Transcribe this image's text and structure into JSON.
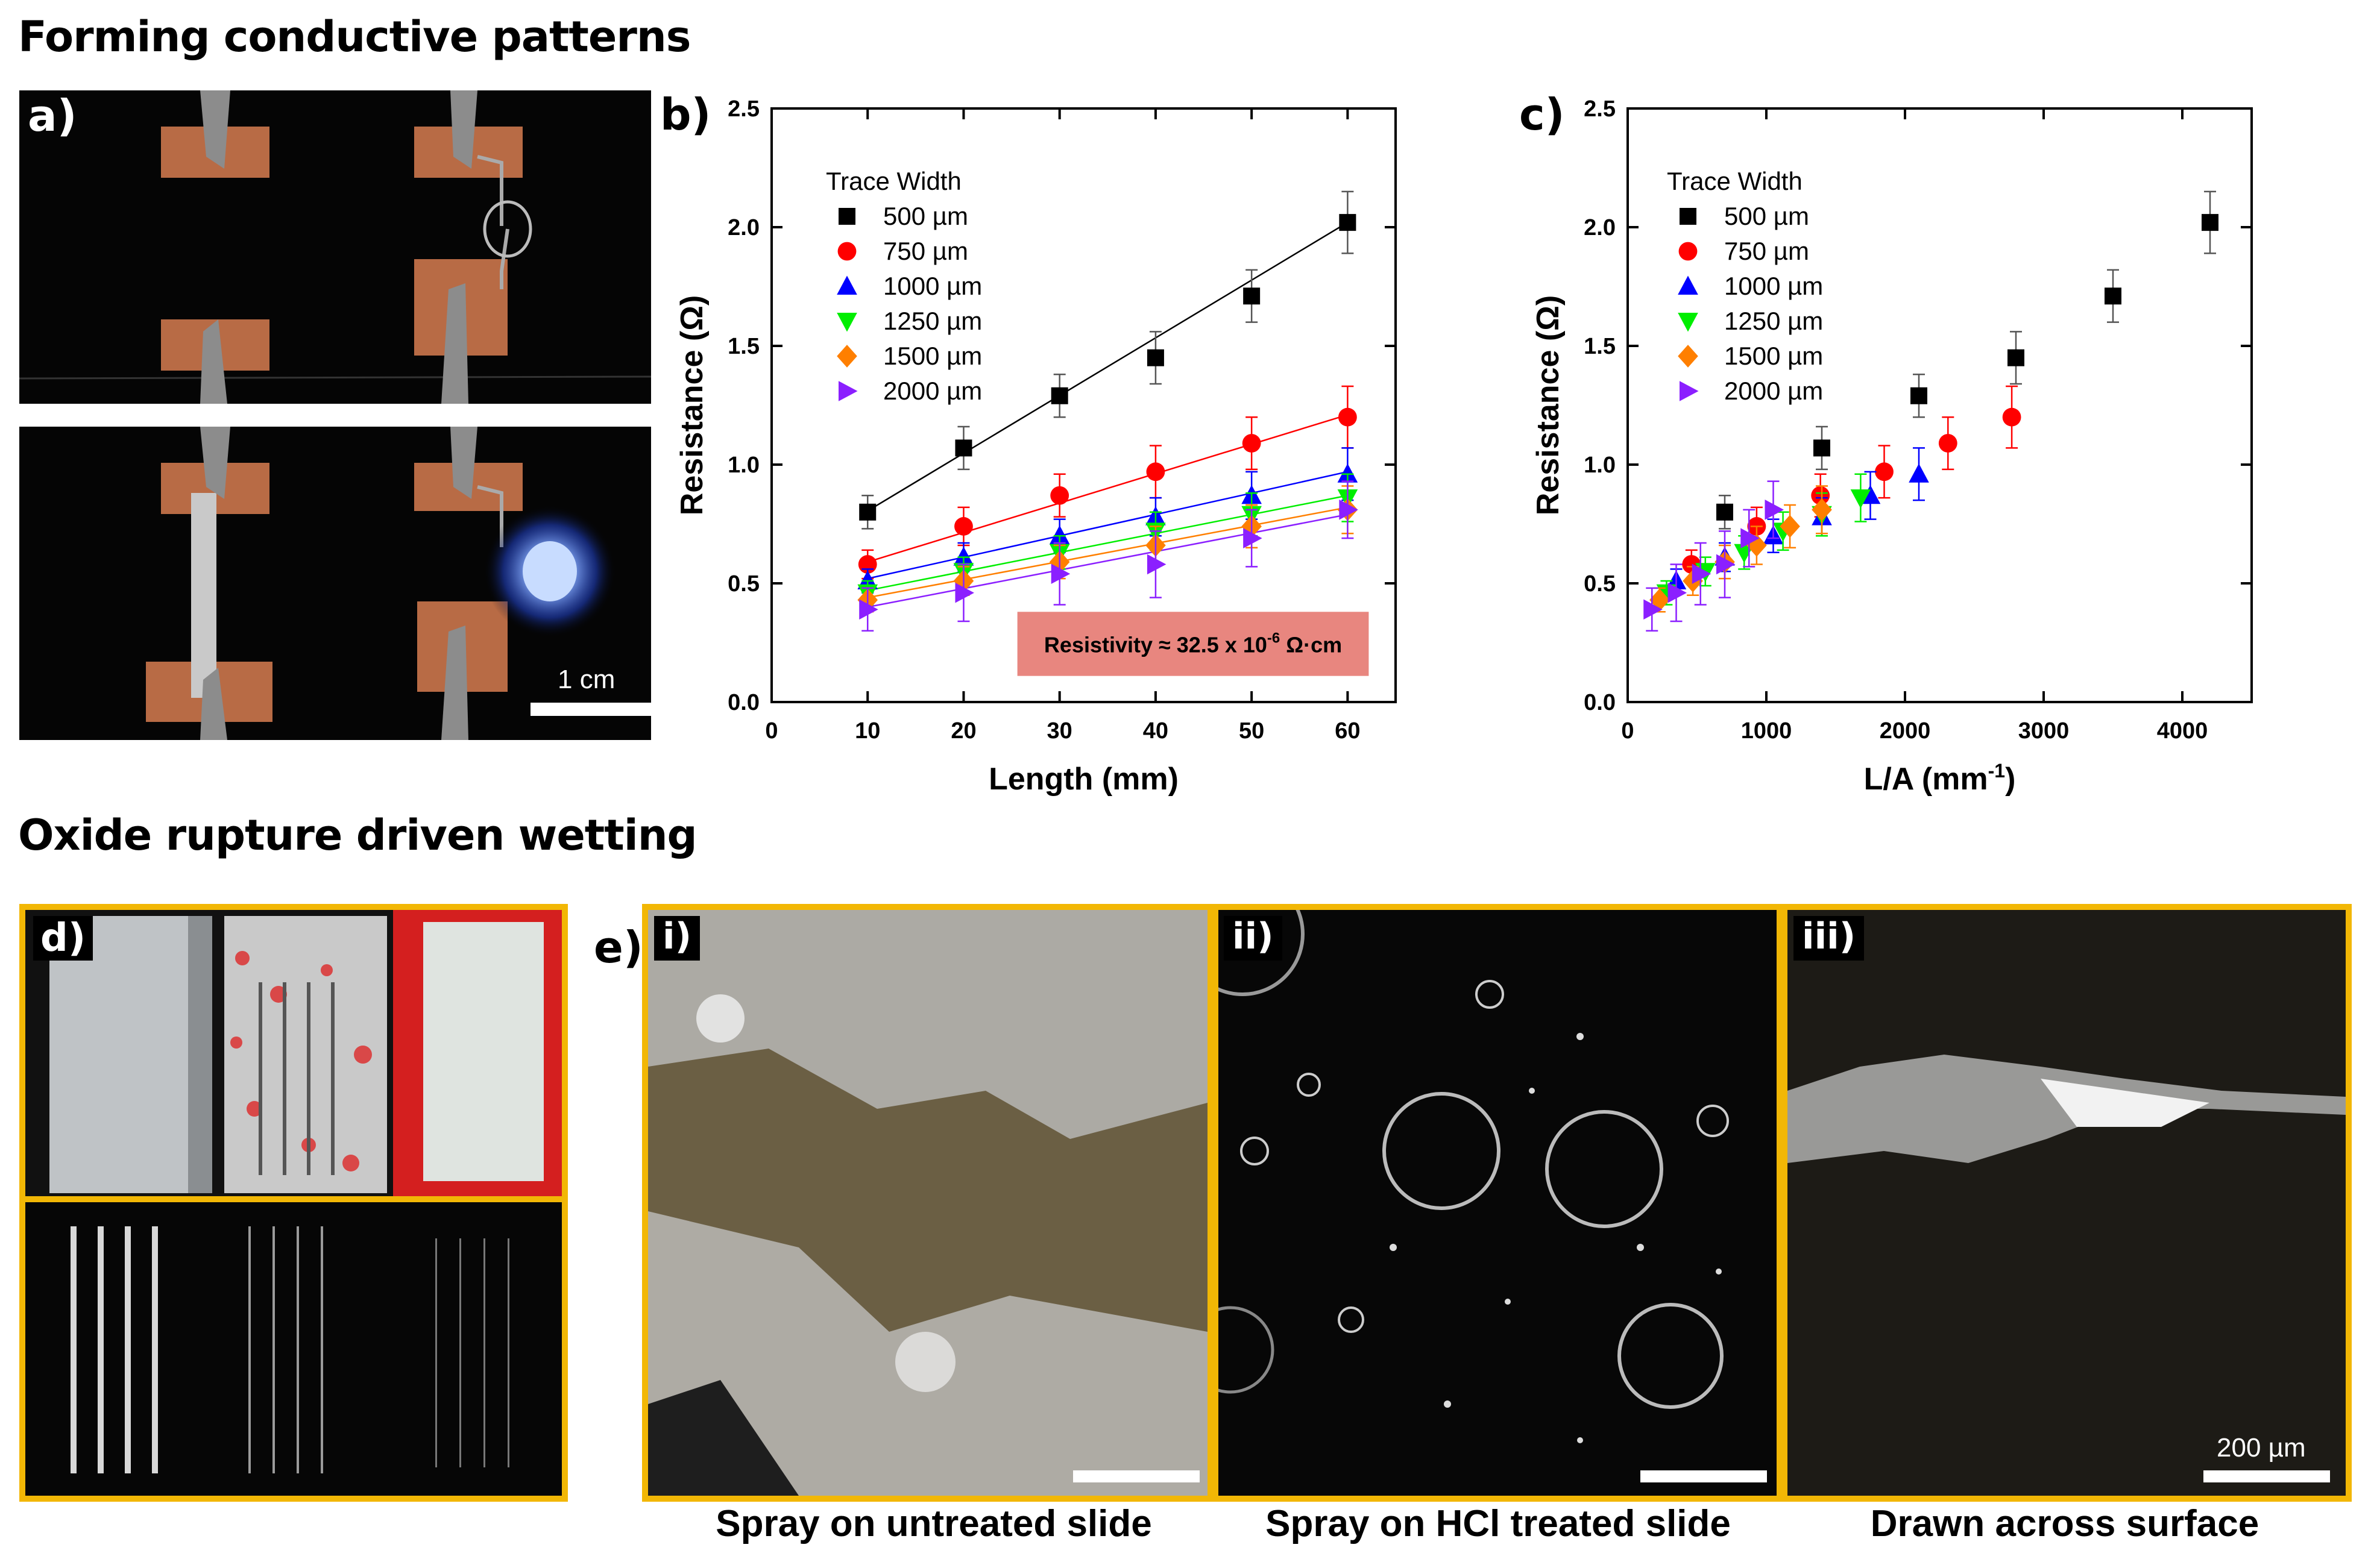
{
  "section1_title": "Forming conductive patterns",
  "section2_title": "Oxide rupture driven wetting",
  "labels": {
    "a": "a)",
    "b": "b)",
    "c": "c)",
    "d": "d)",
    "e": "e)",
    "i": "i)",
    "ii": "ii)",
    "iii": "iii)"
  },
  "panel_a": {
    "scale_bar": "1 cm"
  },
  "panel_e": {
    "captions": [
      "Spray on untreated slide",
      "Spray on HCl treated slide",
      "Drawn across surface"
    ],
    "scale_bar": "200 µm"
  },
  "chart_data": [
    {
      "type": "scatter",
      "panel": "b",
      "xlabel": "Length (mm)",
      "ylabel": "Resistance (Ω)",
      "xlim": [
        0,
        65
      ],
      "ylim": [
        0,
        2.5
      ],
      "xticks": [
        0,
        10,
        20,
        30,
        40,
        50,
        60
      ],
      "yticks": [
        0.0,
        0.5,
        1.0,
        1.5,
        2.0,
        2.5
      ],
      "legend_title": "Trace Width",
      "annotation": "Resistivity ≈ 32.5 x 10",
      "annotation_exp": "-6",
      "annotation_unit": " Ω·cm",
      "series": [
        {
          "name": "500 µm",
          "marker": "square",
          "color": "#000000",
          "x": [
            10,
            20,
            30,
            40,
            50,
            60
          ],
          "y": [
            0.8,
            1.07,
            1.29,
            1.45,
            1.71,
            2.02
          ],
          "err": [
            0.07,
            0.09,
            0.09,
            0.11,
            0.11,
            0.13
          ],
          "fit": [
            0.805,
            2.02
          ]
        },
        {
          "name": "750 µm",
          "marker": "circle",
          "color": "#ff0000",
          "x": [
            10,
            20,
            30,
            40,
            50,
            60
          ],
          "y": [
            0.58,
            0.74,
            0.87,
            0.97,
            1.09,
            1.2
          ],
          "err": [
            0.06,
            0.08,
            0.09,
            0.11,
            0.11,
            0.13
          ],
          "fit": [
            0.59,
            1.21
          ]
        },
        {
          "name": "1000 µm",
          "marker": "triangle-up",
          "color": "#0000ff",
          "x": [
            10,
            20,
            30,
            40,
            50,
            60
          ],
          "y": [
            0.51,
            0.61,
            0.7,
            0.78,
            0.87,
            0.96
          ],
          "err": [
            0.05,
            0.06,
            0.07,
            0.08,
            0.1,
            0.11
          ],
          "fit": [
            0.52,
            0.97
          ]
        },
        {
          "name": "1250 µm",
          "marker": "triangle-down",
          "color": "#00ee00",
          "x": [
            10,
            20,
            30,
            40,
            50,
            60
          ],
          "y": [
            0.46,
            0.55,
            0.63,
            0.72,
            0.79,
            0.86
          ],
          "err": [
            0.05,
            0.06,
            0.07,
            0.08,
            0.09,
            0.1
          ],
          "fit": [
            0.47,
            0.87
          ]
        },
        {
          "name": "1500 µm",
          "marker": "diamond",
          "color": "#ff7f00",
          "x": [
            10,
            20,
            30,
            40,
            50,
            60
          ],
          "y": [
            0.43,
            0.51,
            0.59,
            0.66,
            0.74,
            0.81
          ],
          "err": [
            0.05,
            0.06,
            0.07,
            0.08,
            0.09,
            0.1
          ],
          "fit": [
            0.44,
            0.82
          ]
        },
        {
          "name": "2000 µm",
          "marker": "triangle-right",
          "color": "#8b1fff",
          "x": [
            10,
            20,
            30,
            40,
            50,
            60
          ],
          "y": [
            0.39,
            0.46,
            0.54,
            0.58,
            0.69,
            0.81
          ],
          "err": [
            0.09,
            0.12,
            0.13,
            0.14,
            0.12,
            0.12
          ],
          "fit": [
            0.4,
            0.79
          ]
        }
      ]
    },
    {
      "type": "scatter",
      "panel": "c",
      "xlabel": "L/A (mm",
      "xlabel_exp": "-1",
      "xlabel_end": ")",
      "ylabel": "Resistance (Ω)",
      "xlim": [
        0,
        4500
      ],
      "ylim": [
        0,
        2.5
      ],
      "xticks": [
        0,
        1000,
        2000,
        3000,
        4000
      ],
      "yticks": [
        0.0,
        0.5,
        1.0,
        1.5,
        2.0,
        2.5
      ],
      "legend_title": "Trace Width",
      "series": [
        {
          "name": "500 µm",
          "marker": "square",
          "color": "#000000",
          "x": [
            700,
            1400,
            2100,
            2800,
            3500,
            4200
          ],
          "y": [
            0.8,
            1.07,
            1.29,
            1.45,
            1.71,
            2.02
          ],
          "err": [
            0.07,
            0.09,
            0.09,
            0.11,
            0.11,
            0.13
          ]
        },
        {
          "name": "750 µm",
          "marker": "circle",
          "color": "#ff0000",
          "x": [
            460,
            930,
            1390,
            1850,
            2310,
            2770
          ],
          "y": [
            0.58,
            0.74,
            0.87,
            0.97,
            1.09,
            1.2
          ],
          "err": [
            0.06,
            0.08,
            0.09,
            0.11,
            0.11,
            0.13
          ]
        },
        {
          "name": "1000 µm",
          "marker": "triangle-up",
          "color": "#0000ff",
          "x": [
            350,
            700,
            1050,
            1400,
            1750,
            2100
          ],
          "y": [
            0.51,
            0.61,
            0.7,
            0.78,
            0.87,
            0.96
          ],
          "err": [
            0.05,
            0.06,
            0.07,
            0.08,
            0.1,
            0.11
          ],
          "xshift": [
            0,
            0,
            0,
            0,
            0,
            0
          ]
        },
        {
          "name": "1250 µm",
          "marker": "triangle-down",
          "color": "#00ee00",
          "x": [
            280,
            560,
            840,
            1120,
            1400,
            1680
          ],
          "y": [
            0.46,
            0.55,
            0.63,
            0.72,
            0.79,
            0.86
          ],
          "err": [
            0.05,
            0.06,
            0.07,
            0.08,
            0.09,
            0.1
          ]
        },
        {
          "name": "1500 µm",
          "marker": "diamond",
          "color": "#ff7f00",
          "x": [
            230,
            470,
            700,
            930,
            1170,
            1400
          ],
          "y": [
            0.43,
            0.51,
            0.59,
            0.66,
            0.74,
            0.81
          ],
          "err": [
            0.05,
            0.06,
            0.07,
            0.08,
            0.09,
            0.1
          ]
        },
        {
          "name": "2000 µm",
          "marker": "triangle-right",
          "color": "#8b1fff",
          "x": [
            175,
            350,
            525,
            700,
            875,
            1050
          ],
          "y": [
            0.39,
            0.46,
            0.54,
            0.58,
            0.69,
            0.81
          ],
          "err": [
            0.09,
            0.12,
            0.13,
            0.14,
            0.12,
            0.12
          ]
        }
      ]
    }
  ]
}
